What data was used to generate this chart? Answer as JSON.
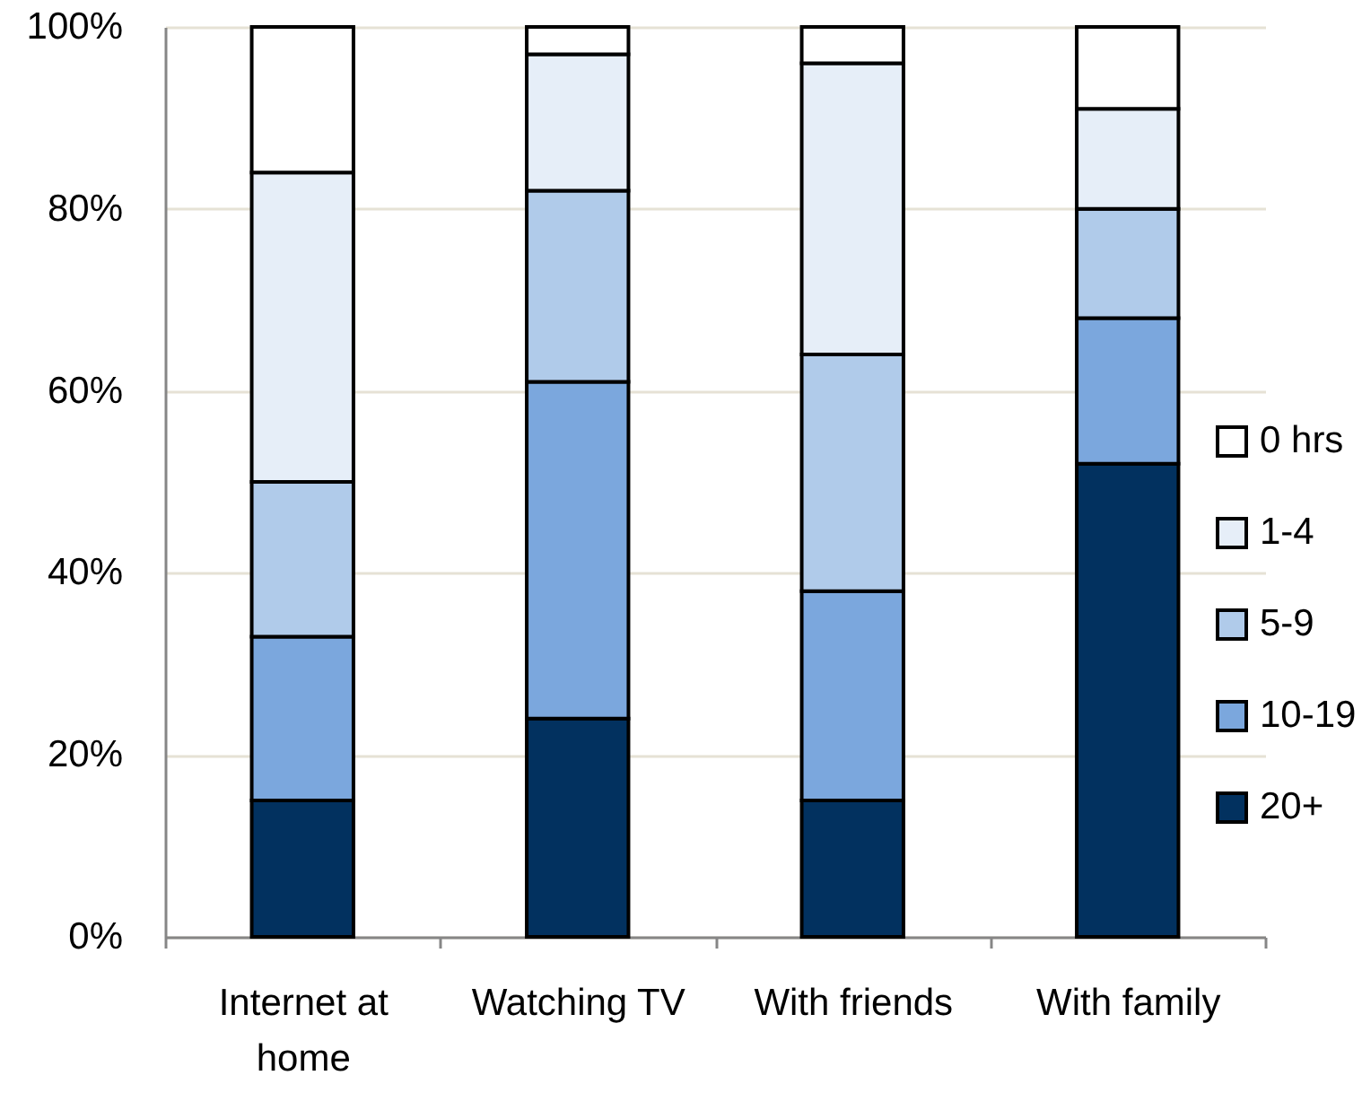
{
  "chart_data": {
    "type": "bar",
    "stacked": true,
    "categories": [
      "Internet at home",
      "Watching TV",
      "With friends",
      "With family"
    ],
    "series": [
      {
        "name": "20+",
        "color": "#02315f",
        "values": [
          15,
          24,
          15,
          52
        ]
      },
      {
        "name": "10-19",
        "color": "#7ba7dd",
        "values": [
          18,
          37,
          23,
          16
        ]
      },
      {
        "name": "5-9",
        "color": "#b0cbea",
        "values": [
          17,
          21,
          26,
          12
        ]
      },
      {
        "name": "1-4",
        "color": "#e6eef8",
        "values": [
          34,
          15,
          32,
          11
        ]
      },
      {
        "name": "0 hrs",
        "color": "#ffffff",
        "values": [
          16,
          3,
          4,
          9
        ]
      }
    ],
    "ylim": [
      0,
      100
    ],
    "yticks": [
      {
        "value": 0,
        "label": "0%"
      },
      {
        "value": 20,
        "label": "20%"
      },
      {
        "value": 40,
        "label": "40%"
      },
      {
        "value": 60,
        "label": "60%"
      },
      {
        "value": 80,
        "label": "80%"
      },
      {
        "value": 100,
        "label": "100%"
      }
    ],
    "grid": "y",
    "legend": "right"
  }
}
